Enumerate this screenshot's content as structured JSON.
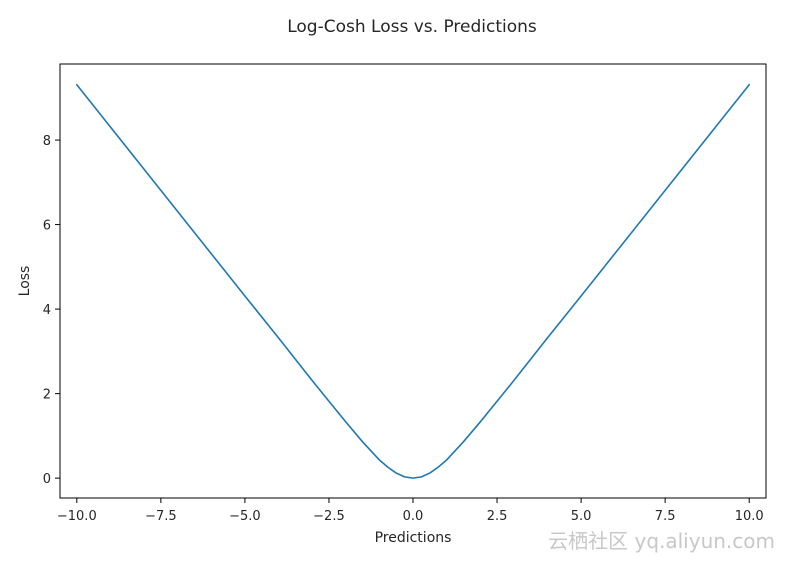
{
  "chart_data": {
    "type": "line",
    "title": "Log-Cosh Loss vs. Predictions",
    "xlabel": "Predictions",
    "ylabel": "Loss",
    "xlim": [
      -10.5,
      10.5
    ],
    "ylim": [
      -0.47,
      9.8
    ],
    "xticks": [
      -10.0,
      -7.5,
      -5.0,
      -2.5,
      0.0,
      2.5,
      5.0,
      7.5,
      10.0
    ],
    "xtick_labels": [
      "−10.0",
      "−7.5",
      "−5.0",
      "−2.5",
      "0.0",
      "2.5",
      "5.0",
      "7.5",
      "10.0"
    ],
    "yticks": [
      0,
      2,
      4,
      6,
      8
    ],
    "ytick_labels": [
      "0",
      "2",
      "4",
      "6",
      "8"
    ],
    "grid": false,
    "legend": false,
    "series": [
      {
        "color": "#1f77b4",
        "x": [
          -10,
          -9,
          -8,
          -7,
          -6,
          -5,
          -4,
          -3,
          -2.5,
          -2,
          -1.5,
          -1,
          -0.75,
          -0.5,
          -0.25,
          0,
          0.25,
          0.5,
          0.75,
          1,
          1.5,
          2,
          2.5,
          3,
          4,
          5,
          6,
          7,
          8,
          9,
          10
        ],
        "y": [
          9.31,
          8.31,
          7.31,
          6.31,
          5.31,
          4.31,
          3.32,
          2.31,
          1.82,
          1.33,
          0.86,
          0.43,
          0.26,
          0.12,
          0.03,
          0.0,
          0.03,
          0.12,
          0.26,
          0.43,
          0.86,
          1.33,
          1.82,
          2.31,
          3.32,
          4.31,
          5.31,
          6.31,
          7.31,
          8.31,
          9.31
        ]
      }
    ]
  },
  "watermark": "云栖社区 yq.aliyun.com"
}
